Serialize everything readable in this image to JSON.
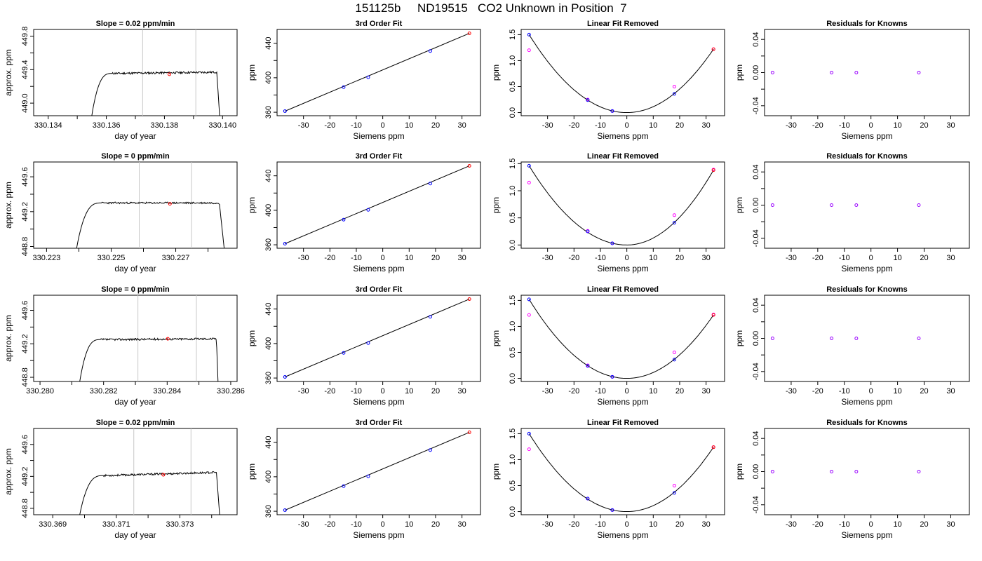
{
  "page": {
    "title": "151125b     ND19515   CO2 Unknown in Position  7"
  },
  "colors": {
    "axis": "#000000",
    "curve": "#000000",
    "cursor": "#c8c8c8",
    "known_point": "#0000ff",
    "unknown_point": "#ff0000",
    "residual_point": "#ff00ff",
    "residual_known": "#9a00ff"
  },
  "chart_data": [
    {
      "type": "line",
      "title": "Slope =  0.02  ppm/min",
      "xlabel": "day of year",
      "ylabel": "approx. ppm",
      "xlim": [
        330.1335,
        330.1405
      ],
      "ylim": [
        448.85,
        449.88
      ],
      "xticks": [
        330.134,
        330.135,
        330.136,
        330.137,
        330.138,
        330.139,
        330.14
      ],
      "xtick_labels": [
        "330.134",
        "",
        "330.136",
        "",
        "330.138",
        "",
        "330.140"
      ],
      "yticks": [
        449.0,
        449.2,
        449.4,
        449.6,
        449.8
      ],
      "ytick_labels": [
        "449.0",
        "",
        "449.4",
        "",
        "449.8"
      ],
      "trace": {
        "start": 330.1355,
        "rise_end": 330.1362,
        "end": 330.1398,
        "drop_end": 330.1399,
        "bottom": 448.85,
        "plateau": 449.355,
        "level_end": 449.37,
        "noise": 0.012,
        "seed": 11
      },
      "cursors": [
        330.13725,
        330.13908
      ],
      "marker": {
        "x": 330.13817,
        "y": 449.345
      }
    },
    {
      "type": "scatter",
      "title": "3rd Order Fit",
      "xlabel": "Siemens ppm",
      "ylabel": "ppm",
      "xlim": [
        -40,
        37
      ],
      "ylim": [
        356,
        456
      ],
      "xticks": [
        -30,
        -20,
        -10,
        0,
        10,
        20,
        30
      ],
      "xtick_labels": [
        "-30",
        "-20",
        "-10",
        "0",
        "10",
        "20",
        "30"
      ],
      "yticks": [
        360,
        380,
        400,
        420,
        440
      ],
      "ytick_labels": [
        "360",
        "",
        "400",
        "",
        "440"
      ],
      "line": [
        [
          -37,
          361.3
        ],
        [
          32.8,
          451.5
        ]
      ],
      "known_points": [
        [
          -37,
          361.3
        ],
        [
          -14.8,
          389.1
        ],
        [
          -5.5,
          400.5
        ],
        [
          18.0,
          431.0
        ]
      ],
      "unknown_points": [
        [
          32.8,
          451.5
        ]
      ]
    },
    {
      "type": "scatter",
      "title": "Linear Fit Removed",
      "xlabel": "Siemens ppm",
      "ylabel": "ppm",
      "xlim": [
        -40,
        37
      ],
      "ylim": [
        -0.06,
        1.6
      ],
      "xticks": [
        -30,
        -20,
        -10,
        0,
        10,
        20,
        30
      ],
      "xtick_labels": [
        "-30",
        "-20",
        "-10",
        "0",
        "10",
        "20",
        "30"
      ],
      "yticks": [
        0.0,
        0.5,
        1.0,
        1.5
      ],
      "ytick_labels": [
        "0.0",
        "0.5",
        "1.0",
        "1.5"
      ],
      "curve": {
        "vertex_x": 0,
        "vertex_y": 0,
        "left_end": [
          -37,
          1.5
        ],
        "right_end": [
          32.8,
          1.22
        ]
      },
      "known_points": [
        [
          -37,
          1.5
        ],
        [
          -14.8,
          0.24
        ],
        [
          -5.5,
          0.03
        ],
        [
          18.0,
          0.36
        ]
      ],
      "unknown_points": [
        [
          32.8,
          1.22
        ]
      ],
      "residual_points": [
        [
          -37,
          1.2
        ],
        [
          -14.8,
          0.25
        ],
        [
          -5.5,
          0.03
        ],
        [
          18.0,
          0.5
        ],
        [
          32.8,
          1.22
        ]
      ]
    },
    {
      "type": "scatter",
      "title": "Residuals for Knowns",
      "xlabel": "Siemens ppm",
      "ylabel": "ppm",
      "xlim": [
        -40,
        37
      ],
      "ylim": [
        -0.052,
        0.052
      ],
      "xticks": [
        -30,
        -20,
        -10,
        0,
        10,
        20,
        30
      ],
      "xtick_labels": [
        "-30",
        "-20",
        "-10",
        "0",
        "10",
        "20",
        "30"
      ],
      "yticks": [
        -0.04,
        -0.02,
        0.0,
        0.02,
        0.04
      ],
      "ytick_labels": [
        "-0.04",
        "",
        "0.00",
        "",
        "0.04"
      ],
      "residual_points": [
        [
          -37,
          0
        ],
        [
          -14.8,
          0
        ],
        [
          -5.5,
          0
        ],
        [
          18.0,
          0
        ]
      ]
    },
    {
      "type": "line",
      "title": "Slope =  0  ppm/min",
      "xlabel": "day of year",
      "ylabel": "approx. ppm",
      "xlim": [
        330.2226,
        330.2289
      ],
      "ylim": [
        448.78,
        449.77
      ],
      "xticks": [
        330.223,
        330.224,
        330.225,
        330.226,
        330.227,
        330.228
      ],
      "xtick_labels": [
        "330.223",
        "",
        "330.225",
        "",
        "330.227",
        ""
      ],
      "yticks": [
        448.8,
        449.0,
        449.2,
        449.4,
        449.6
      ],
      "ytick_labels": [
        "448.8",
        "",
        "449.2",
        "",
        "449.6"
      ],
      "trace": {
        "start": 330.22393,
        "rise_end": 330.2247,
        "end": 330.22835,
        "drop_end": 330.2285,
        "bottom": 448.78,
        "plateau": 449.3,
        "level_end": 449.3,
        "noise": 0.01,
        "seed": 23
      },
      "cursors": [
        330.22587,
        330.22749
      ],
      "marker": {
        "x": 330.22682,
        "y": 449.29
      }
    },
    {
      "type": "scatter",
      "title": "3rd Order Fit",
      "xlabel": "Siemens ppm",
      "ylabel": "ppm",
      "xlim": [
        -40,
        37
      ],
      "ylim": [
        356,
        456
      ],
      "xticks": [
        -30,
        -20,
        -10,
        0,
        10,
        20,
        30
      ],
      "xtick_labels": [
        "-30",
        "-20",
        "-10",
        "0",
        "10",
        "20",
        "30"
      ],
      "yticks": [
        360,
        380,
        400,
        420,
        440
      ],
      "ytick_labels": [
        "360",
        "",
        "400",
        "",
        "440"
      ],
      "line": [
        [
          -37,
          361.3
        ],
        [
          32.8,
          451.5
        ]
      ],
      "known_points": [
        [
          -37,
          361.3
        ],
        [
          -14.8,
          389.1
        ],
        [
          -5.5,
          400.5
        ],
        [
          18.0,
          431.0
        ]
      ],
      "unknown_points": [
        [
          32.8,
          451.5
        ]
      ]
    },
    {
      "type": "scatter",
      "title": "Linear Fit Removed",
      "xlabel": "Siemens ppm",
      "ylabel": "ppm",
      "xlim": [
        -40,
        37
      ],
      "ylim": [
        -0.06,
        1.53
      ],
      "xticks": [
        -30,
        -20,
        -10,
        0,
        10,
        20,
        30
      ],
      "xtick_labels": [
        "-30",
        "-20",
        "-10",
        "0",
        "10",
        "20",
        "30"
      ],
      "yticks": [
        0.0,
        0.5,
        1.0,
        1.5
      ],
      "ytick_labels": [
        "0.0",
        "0.5",
        "1.0",
        "1.5"
      ],
      "curve": {
        "vertex_x": 0,
        "vertex_y": 0,
        "left_end": [
          -37,
          1.46
        ],
        "right_end": [
          32.8,
          1.38
        ]
      },
      "known_points": [
        [
          -37,
          1.46
        ],
        [
          -14.8,
          0.25
        ],
        [
          -5.5,
          0.03
        ],
        [
          18.0,
          0.41
        ]
      ],
      "unknown_points": [
        [
          32.8,
          1.38
        ]
      ],
      "residual_points": [
        [
          -37,
          1.15
        ],
        [
          -14.8,
          0.26
        ],
        [
          -5.5,
          0.03
        ],
        [
          18.0,
          0.55
        ],
        [
          32.8,
          1.39
        ]
      ]
    },
    {
      "type": "scatter",
      "title": "Residuals for Knowns",
      "xlabel": "Siemens ppm",
      "ylabel": "ppm",
      "xlim": [
        -40,
        37
      ],
      "ylim": [
        -0.052,
        0.052
      ],
      "xticks": [
        -30,
        -20,
        -10,
        0,
        10,
        20,
        30
      ],
      "xtick_labels": [
        "-30",
        "-20",
        "-10",
        "0",
        "10",
        "20",
        "30"
      ],
      "yticks": [
        -0.04,
        -0.02,
        0.0,
        0.02,
        0.04
      ],
      "ytick_labels": [
        "-0.04",
        "",
        "0.00",
        "",
        "0.04"
      ],
      "residual_points": [
        [
          -37,
          0
        ],
        [
          -14.8,
          0
        ],
        [
          -5.5,
          0
        ],
        [
          18.0,
          0
        ]
      ]
    },
    {
      "type": "line",
      "title": "Slope =  0  ppm/min",
      "xlabel": "day of year",
      "ylabel": "approx. ppm",
      "xlim": [
        330.2798,
        330.2862
      ],
      "ylim": [
        448.75,
        449.78
      ],
      "xticks": [
        330.28,
        330.281,
        330.282,
        330.283,
        330.284,
        330.285,
        330.286
      ],
      "xtick_labels": [
        "330.280",
        "",
        "330.282",
        "",
        "330.284",
        "",
        "330.286"
      ],
      "yticks": [
        448.8,
        449.0,
        449.2,
        449.4,
        449.6
      ],
      "ytick_labels": [
        "448.8",
        "",
        "449.2",
        "",
        "449.6"
      ],
      "trace": {
        "start": 330.28125,
        "rise_end": 330.2819,
        "end": 330.28555,
        "drop_end": 330.2856,
        "bottom": 448.75,
        "plateau": 449.25,
        "level_end": 449.26,
        "noise": 0.012,
        "seed": 37
      },
      "cursors": [
        330.28308,
        330.28492
      ],
      "marker": {
        "x": 330.28402,
        "y": 449.26
      }
    },
    {
      "type": "scatter",
      "title": "3rd Order Fit",
      "xlabel": "Siemens ppm",
      "ylabel": "ppm",
      "xlim": [
        -40,
        37
      ],
      "ylim": [
        356,
        456
      ],
      "xticks": [
        -30,
        -20,
        -10,
        0,
        10,
        20,
        30
      ],
      "xtick_labels": [
        "-30",
        "-20",
        "-10",
        "0",
        "10",
        "20",
        "30"
      ],
      "yticks": [
        360,
        380,
        400,
        420,
        440
      ],
      "ytick_labels": [
        "360",
        "",
        "400",
        "",
        "440"
      ],
      "line": [
        [
          -37,
          361.3
        ],
        [
          32.8,
          451.5
        ]
      ],
      "known_points": [
        [
          -37,
          361.3
        ],
        [
          -14.8,
          389.1
        ],
        [
          -5.5,
          400.5
        ],
        [
          18.0,
          431.0
        ]
      ],
      "unknown_points": [
        [
          32.8,
          451.5
        ]
      ]
    },
    {
      "type": "scatter",
      "title": "Linear Fit Removed",
      "xlabel": "Siemens ppm",
      "ylabel": "ppm",
      "xlim": [
        -40,
        37
      ],
      "ylim": [
        -0.06,
        1.6
      ],
      "xticks": [
        -30,
        -20,
        -10,
        0,
        10,
        20,
        30
      ],
      "xtick_labels": [
        "-30",
        "-20",
        "-10",
        "0",
        "10",
        "20",
        "30"
      ],
      "yticks": [
        0.0,
        0.5,
        1.0,
        1.5
      ],
      "ytick_labels": [
        "0.0",
        "0.5",
        "1.0",
        "1.5"
      ],
      "curve": {
        "vertex_x": 0,
        "vertex_y": 0,
        "left_end": [
          -37,
          1.52
        ],
        "right_end": [
          32.8,
          1.22
        ]
      },
      "known_points": [
        [
          -37,
          1.52
        ],
        [
          -14.8,
          0.24
        ],
        [
          -5.5,
          0.03
        ],
        [
          18.0,
          0.36
        ]
      ],
      "unknown_points": [
        [
          32.8,
          1.22
        ]
      ],
      "residual_points": [
        [
          -37,
          1.22
        ],
        [
          -14.8,
          0.25
        ],
        [
          -5.5,
          0.03
        ],
        [
          18.0,
          0.5
        ],
        [
          32.8,
          1.23
        ]
      ]
    },
    {
      "type": "scatter",
      "title": "Residuals for Knowns",
      "xlabel": "Siemens ppm",
      "ylabel": "ppm",
      "xlim": [
        -40,
        37
      ],
      "ylim": [
        -0.052,
        0.052
      ],
      "xticks": [
        -30,
        -20,
        -10,
        0,
        10,
        20,
        30
      ],
      "xtick_labels": [
        "-30",
        "-20",
        "-10",
        "0",
        "10",
        "20",
        "30"
      ],
      "yticks": [
        -0.04,
        -0.02,
        0.0,
        0.02,
        0.04
      ],
      "ytick_labels": [
        "-0.04",
        "",
        "0.00",
        "",
        "0.04"
      ],
      "residual_points": [
        [
          -37,
          0
        ],
        [
          -14.8,
          0
        ],
        [
          -5.5,
          0
        ],
        [
          18.0,
          0
        ]
      ]
    },
    {
      "type": "line",
      "title": "Slope =  0.02  ppm/min",
      "xlabel": "day of year",
      "ylabel": "approx. ppm",
      "xlim": [
        330.3684,
        330.3748
      ],
      "ylim": [
        448.72,
        449.8
      ],
      "xticks": [
        330.369,
        330.37,
        330.371,
        330.372,
        330.373,
        330.374
      ],
      "xtick_labels": [
        "330.369",
        "",
        "330.371",
        "",
        "330.373",
        ""
      ],
      "yticks": [
        448.8,
        449.0,
        449.2,
        449.4,
        449.6
      ],
      "ytick_labels": [
        "448.8",
        "",
        "449.2",
        "",
        "449.6"
      ],
      "trace": {
        "start": 330.36985,
        "rise_end": 330.3706,
        "end": 330.37415,
        "drop_end": 330.37425,
        "bottom": 448.72,
        "plateau": 449.21,
        "level_end": 449.25,
        "noise": 0.012,
        "seed": 53
      },
      "cursors": [
        330.37155,
        330.37335
      ],
      "marker": {
        "x": 330.37248,
        "y": 449.22
      }
    },
    {
      "type": "scatter",
      "title": "3rd Order Fit",
      "xlabel": "Siemens ppm",
      "ylabel": "ppm",
      "xlim": [
        -40,
        37
      ],
      "ylim": [
        356,
        456
      ],
      "xticks": [
        -30,
        -20,
        -10,
        0,
        10,
        20,
        30
      ],
      "xtick_labels": [
        "-30",
        "-20",
        "-10",
        "0",
        "10",
        "20",
        "30"
      ],
      "yticks": [
        360,
        380,
        400,
        420,
        440
      ],
      "ytick_labels": [
        "360",
        "",
        "400",
        "",
        "440"
      ],
      "line": [
        [
          -37,
          361.3
        ],
        [
          32.8,
          451.5
        ]
      ],
      "known_points": [
        [
          -37,
          361.3
        ],
        [
          -14.8,
          389.1
        ],
        [
          -5.5,
          400.5
        ],
        [
          18.0,
          431.0
        ]
      ],
      "unknown_points": [
        [
          32.8,
          451.5
        ]
      ]
    },
    {
      "type": "scatter",
      "title": "Linear Fit Removed",
      "xlabel": "Siemens ppm",
      "ylabel": "ppm",
      "xlim": [
        -40,
        37
      ],
      "ylim": [
        -0.06,
        1.6
      ],
      "xticks": [
        -30,
        -20,
        -10,
        0,
        10,
        20,
        30
      ],
      "xtick_labels": [
        "-30",
        "-20",
        "-10",
        "0",
        "10",
        "20",
        "30"
      ],
      "yticks": [
        0.0,
        0.5,
        1.0,
        1.5
      ],
      "ytick_labels": [
        "0.0",
        "0.5",
        "1.0",
        "1.5"
      ],
      "curve": {
        "vertex_x": 0,
        "vertex_y": 0,
        "left_end": [
          -37,
          1.5
        ],
        "right_end": [
          32.8,
          1.24
        ]
      },
      "known_points": [
        [
          -37,
          1.5
        ],
        [
          -14.8,
          0.25
        ],
        [
          -5.5,
          0.03
        ],
        [
          18.0,
          0.36
        ]
      ],
      "unknown_points": [
        [
          32.8,
          1.24
        ]
      ],
      "residual_points": [
        [
          -37,
          1.2
        ],
        [
          -14.8,
          0.25
        ],
        [
          -5.5,
          0.03
        ],
        [
          18.0,
          0.5
        ],
        [
          32.8,
          1.24
        ]
      ]
    },
    {
      "type": "scatter",
      "title": "Residuals for Knowns",
      "xlabel": "Siemens ppm",
      "ylabel": "ppm",
      "xlim": [
        -40,
        37
      ],
      "ylim": [
        -0.052,
        0.052
      ],
      "xticks": [
        -30,
        -20,
        -10,
        0,
        10,
        20,
        30
      ],
      "xtick_labels": [
        "-30",
        "-20",
        "-10",
        "0",
        "10",
        "20",
        "30"
      ],
      "yticks": [
        -0.04,
        -0.02,
        0.0,
        0.02,
        0.04
      ],
      "ytick_labels": [
        "-0.04",
        "",
        "0.00",
        "",
        "0.04"
      ],
      "residual_points": [
        [
          -37,
          0
        ],
        [
          -14.8,
          0
        ],
        [
          -5.5,
          0
        ],
        [
          18.0,
          0
        ]
      ]
    }
  ]
}
